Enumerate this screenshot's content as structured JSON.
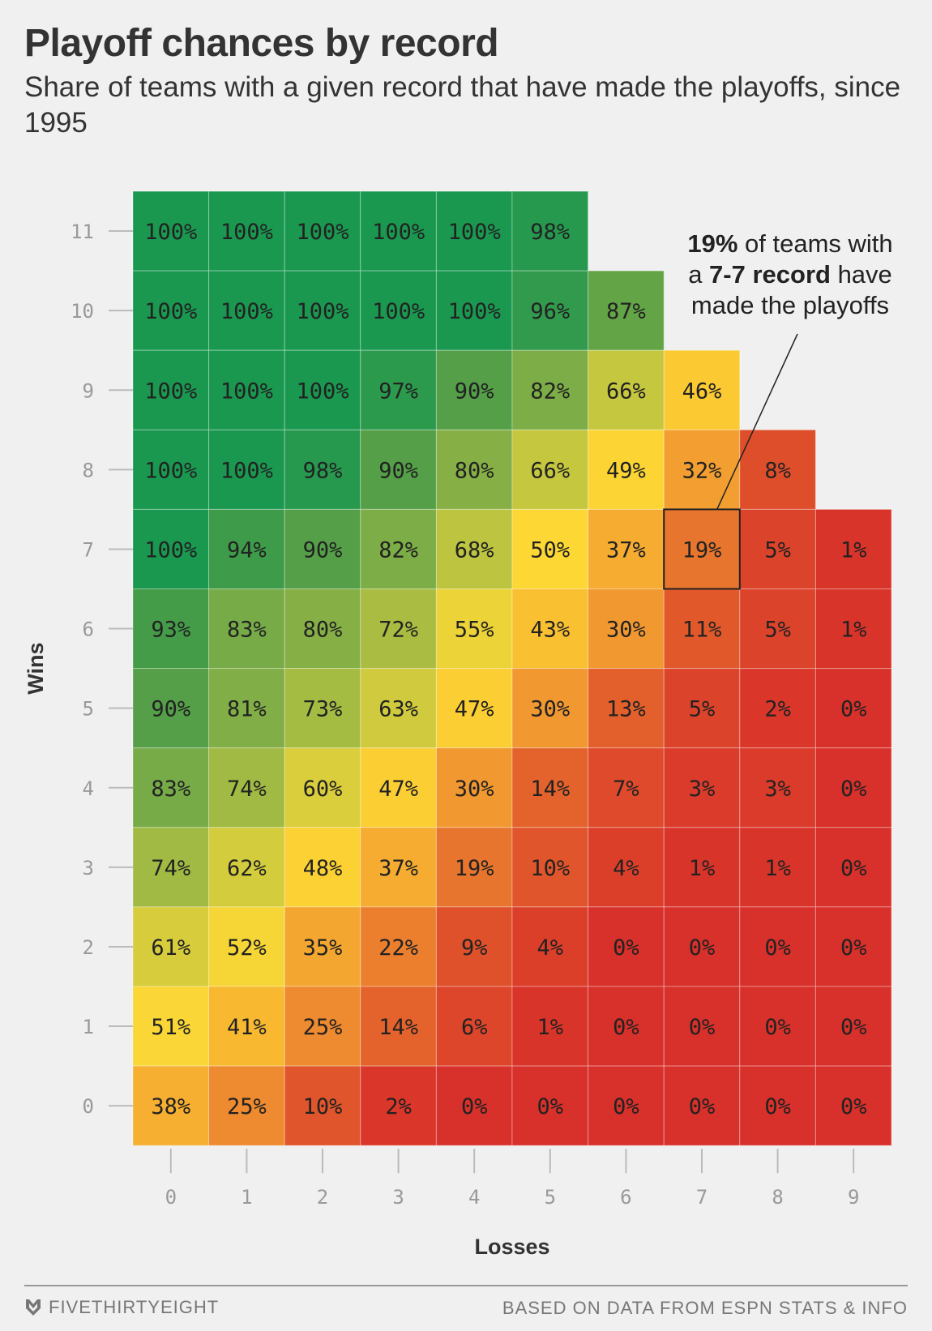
{
  "header": {
    "title": "Playoff chances by record",
    "subtitle": "Share of teams with a given record that have made the playoffs, since 1995"
  },
  "annotation": {
    "pct": "19%",
    "text1": " of teams with",
    "text2": "a ",
    "record": "7-7 record",
    "text3": " have",
    "text4": "made the playoffs"
  },
  "footer": {
    "brand": "FIVETHIRTYEIGHT",
    "source": "BASED ON DATA FROM ESPN STATS & INFO"
  },
  "colors": {
    "background": "#f0f0f0",
    "scale_low": "#d8302a",
    "scale_mid": "#fdd835",
    "scale_high": "#1a9850",
    "highlight": "#222222"
  },
  "chart_data": {
    "type": "heatmap",
    "title": "Playoff chances by record",
    "xlabel": "Losses",
    "ylabel": "Wins",
    "x": [
      0,
      1,
      2,
      3,
      4,
      5,
      6,
      7,
      8,
      9
    ],
    "y": [
      11,
      10,
      9,
      8,
      7,
      6,
      5,
      4,
      3,
      2,
      1,
      0
    ],
    "values": [
      [
        100,
        100,
        100,
        100,
        100,
        98,
        null,
        null,
        null,
        null
      ],
      [
        100,
        100,
        100,
        100,
        100,
        96,
        87,
        null,
        null,
        null
      ],
      [
        100,
        100,
        100,
        97,
        90,
        82,
        66,
        46,
        null,
        null
      ],
      [
        100,
        100,
        98,
        90,
        80,
        66,
        49,
        32,
        8,
        null
      ],
      [
        100,
        94,
        90,
        82,
        68,
        50,
        37,
        19,
        5,
        1
      ],
      [
        93,
        83,
        80,
        72,
        55,
        43,
        30,
        11,
        5,
        1
      ],
      [
        90,
        81,
        73,
        63,
        47,
        30,
        13,
        5,
        2,
        0
      ],
      [
        83,
        74,
        60,
        47,
        30,
        14,
        7,
        3,
        3,
        0
      ],
      [
        74,
        62,
        48,
        37,
        19,
        10,
        4,
        1,
        1,
        0
      ],
      [
        61,
        52,
        35,
        22,
        9,
        4,
        0,
        0,
        0,
        0
      ],
      [
        51,
        41,
        25,
        14,
        6,
        1,
        0,
        0,
        0,
        0
      ],
      [
        38,
        25,
        10,
        2,
        0,
        0,
        0,
        0,
        0,
        0
      ]
    ],
    "unit": "%",
    "highlight": {
      "wins": 7,
      "losses": 7,
      "value": 19
    }
  }
}
